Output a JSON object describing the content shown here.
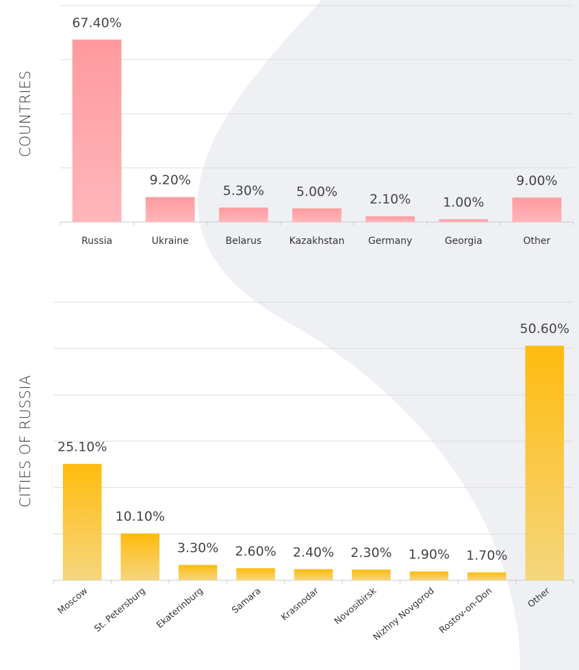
{
  "chart_data": [
    {
      "type": "bar",
      "ylabel": "COUNTRIES",
      "categories": [
        "Russia",
        "Ukraine",
        "Belarus",
        "Kazakhstan",
        "Germany",
        "Georgia",
        "Other"
      ],
      "values": [
        67.4,
        9.2,
        5.3,
        5.0,
        2.1,
        1.0,
        9.0
      ],
      "value_labels": [
        "67.40%",
        "9.20%",
        "5.30%",
        "5.00%",
        "2.10%",
        "1.00%",
        "9.00%"
      ],
      "color": "#ff9a9e",
      "color_bottom": "#ffb6ba",
      "ylim": [
        0,
        80
      ],
      "yticks": [
        0,
        20,
        40,
        60,
        80
      ],
      "grid": true
    },
    {
      "type": "bar",
      "ylabel": "CITIES OF RUSSIA",
      "categories": [
        "Moscow",
        "St. Petersburg",
        "Ekaterinburg",
        "Samara",
        "Krasnodar",
        "Novosibirsk",
        "Nizhny Novgorod",
        "Rostov-on-Don",
        "Other"
      ],
      "values": [
        25.1,
        10.1,
        3.3,
        2.6,
        2.4,
        2.3,
        1.9,
        1.7,
        50.6
      ],
      "value_labels": [
        "25.10%",
        "10.10%",
        "3.30%",
        "2.60%",
        "2.40%",
        "2.30%",
        "1.90%",
        "1.70%",
        "50.60%"
      ],
      "color": "#ffbb0e",
      "color_bottom": "#f5d67e",
      "ylim": [
        0,
        60
      ],
      "yticks": [
        0,
        10,
        20,
        30,
        40,
        50,
        60
      ],
      "grid": true
    }
  ]
}
